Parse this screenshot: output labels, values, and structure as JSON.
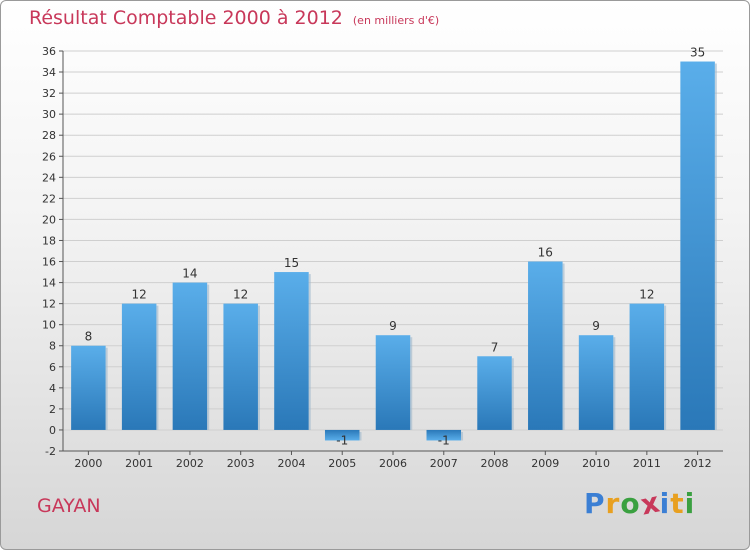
{
  "title": "Résultat Comptable 2000 à 2012",
  "subtitle": "(en milliers d'€)",
  "place_name": "GAYAN",
  "logo": {
    "text": "Proxiti",
    "letters": [
      {
        "char": "P",
        "color": "#3b7fd4"
      },
      {
        "char": "r",
        "color": "#e8a020"
      },
      {
        "char": "o",
        "color": "#3aa040"
      },
      {
        "char": "x",
        "color": "#c8385a"
      },
      {
        "char": "i",
        "color": "#3b7fd4"
      },
      {
        "char": "t",
        "color": "#e8a020"
      },
      {
        "char": "i",
        "color": "#3aa040"
      }
    ]
  },
  "chart_data": {
    "type": "bar",
    "title": "Résultat Comptable 2000 à 2012",
    "subtitle": "(en milliers d'€)",
    "categories": [
      "2000",
      "2001",
      "2002",
      "2003",
      "2004",
      "2005",
      "2006",
      "2007",
      "2008",
      "2009",
      "2010",
      "2011",
      "2012"
    ],
    "values": [
      8,
      12,
      14,
      12,
      15,
      -1,
      9,
      -1,
      7,
      16,
      9,
      12,
      35
    ],
    "ylim": [
      -2,
      36
    ],
    "yticks": [
      -2,
      0,
      2,
      4,
      6,
      8,
      10,
      12,
      14,
      16,
      18,
      20,
      22,
      24,
      26,
      28,
      30,
      32,
      34,
      36
    ],
    "grid": true,
    "bar_color": "#3a8fd6",
    "xlabel": "",
    "ylabel": ""
  }
}
